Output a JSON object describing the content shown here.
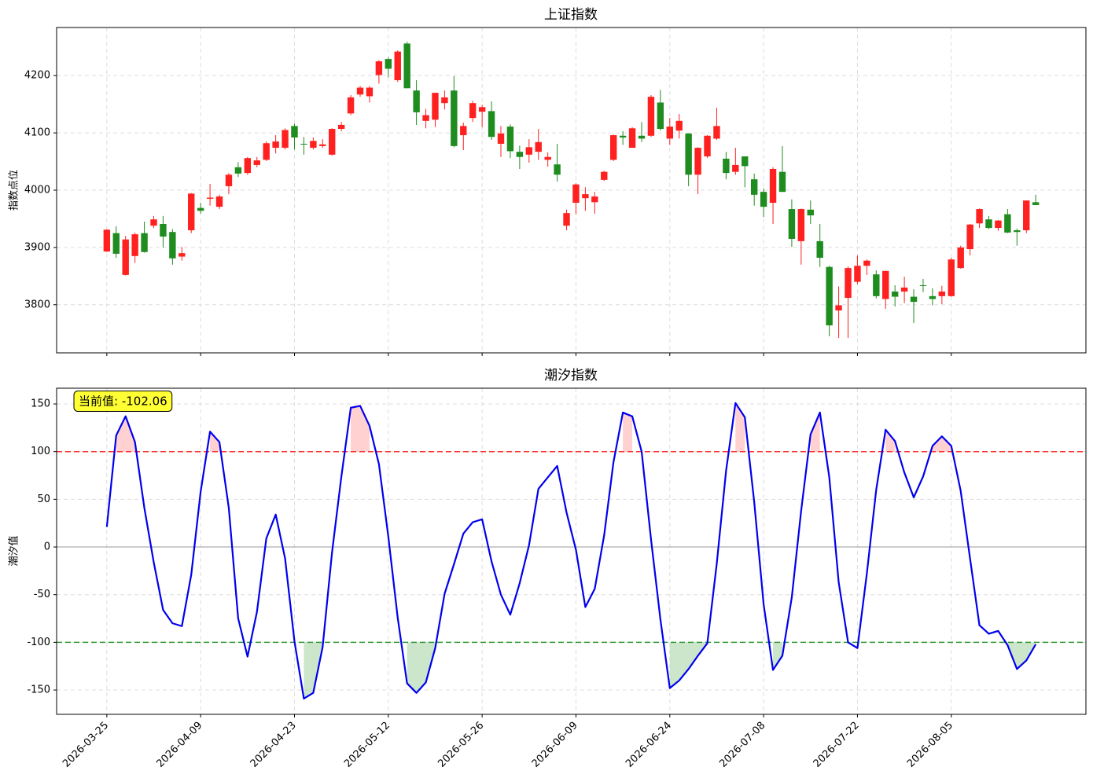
{
  "chart_data": [
    {
      "type": "candlestick",
      "title": "上证指数",
      "y_label": "指数点位",
      "open": [
        3893,
        3925,
        3852,
        3885,
        3925,
        3938,
        3941,
        3927,
        3884,
        3930,
        3969,
        3985,
        3971,
        4007,
        4040,
        4030,
        4044,
        4053,
        4074,
        4074,
        4112,
        4081,
        4074,
        4077,
        4062,
        4107,
        4134,
        4167,
        4164,
        4201,
        4229,
        4192,
        4256,
        4174,
        4121,
        4123,
        4152,
        4174,
        4096,
        4126,
        4137,
        4138,
        4081,
        4111,
        4067,
        4062,
        4067,
        4053,
        4045,
        3938,
        3978,
        3986,
        3979,
        4018,
        4053,
        4095,
        4074,
        4095,
        4095,
        4153,
        4090,
        4104,
        4099,
        4027,
        4059,
        4090,
        4055,
        4032,
        4059,
        4019,
        3997,
        3978,
        4032,
        3967,
        3911,
        3966,
        3911,
        3866,
        3790,
        3812,
        3840,
        3868,
        3853,
        3810,
        3823,
        3823,
        3814,
        3834,
        3815,
        3815,
        3815,
        3864,
        3897,
        3942,
        3949,
        3934,
        3958,
        3930,
        3930,
        3979
      ],
      "high": [
        3932,
        3937,
        3920,
        3926,
        3945,
        3955,
        3955,
        3932,
        3901,
        3995,
        3978,
        4011,
        3992,
        4030,
        4049,
        4058,
        4058,
        4085,
        4096,
        4108,
        4116,
        4093,
        4092,
        4089,
        4108,
        4119,
        4166,
        4182,
        4182,
        4227,
        4232,
        4244,
        4259,
        4192,
        4142,
        4170,
        4174,
        4199,
        4118,
        4156,
        4149,
        4155,
        4112,
        4115,
        4078,
        4089,
        4107,
        4066,
        4081,
        3966,
        4012,
        4005,
        3997,
        4034,
        4097,
        4103,
        4110,
        4119,
        4166,
        4175,
        4126,
        4133,
        4099,
        4075,
        4096,
        4144,
        4067,
        4074,
        4059,
        4029,
        4003,
        4040,
        4077,
        3984,
        3968,
        3982,
        3941,
        3868,
        3832,
        3867,
        3886,
        3879,
        3860,
        3859,
        3834,
        3849,
        3827,
        3845,
        3829,
        3833,
        3882,
        3903,
        3941,
        3968,
        3955,
        3948,
        3967,
        3933,
        3982,
        3992
      ],
      "low": [
        3892,
        3882,
        3851,
        3873,
        3891,
        3934,
        3900,
        3870,
        3877,
        3925,
        3959,
        3973,
        3967,
        3993,
        4023,
        4027,
        4040,
        4051,
        4064,
        4071,
        4071,
        4062,
        4071,
        4074,
        4060,
        4103,
        4131,
        4163,
        4153,
        4186,
        4197,
        4189,
        4178,
        4114,
        4108,
        4110,
        4141,
        4075,
        4070,
        4119,
        4110,
        4088,
        4058,
        4056,
        4037,
        4048,
        4053,
        4041,
        4015,
        3930,
        3958,
        3964,
        3959,
        4016,
        4051,
        4079,
        4074,
        4084,
        4093,
        4104,
        4079,
        4090,
        4007,
        3993,
        4056,
        4088,
        4019,
        4027,
        4005,
        3973,
        3953,
        3941,
        3997,
        3901,
        3870,
        3941,
        3866,
        3745,
        3742,
        3742,
        3836,
        3852,
        3811,
        3793,
        3797,
        3803,
        3768,
        3822,
        3799,
        3801,
        3814,
        3863,
        3886,
        3934,
        3932,
        3929,
        3925,
        3903,
        3925,
        3974
      ],
      "close": [
        3931,
        3889,
        3914,
        3923,
        3892,
        3949,
        3919,
        3881,
        3890,
        3994,
        3964,
        3987,
        3989,
        4027,
        4029,
        4056,
        4052,
        4082,
        4085,
        4105,
        4092,
        4080,
        4086,
        4080,
        4107,
        4114,
        4162,
        4179,
        4179,
        4225,
        4212,
        4242,
        4178,
        4136,
        4131,
        4170,
        4162,
        4077,
        4112,
        4152,
        4145,
        4093,
        4099,
        4068,
        4058,
        4075,
        4084,
        4058,
        4027,
        3960,
        4010,
        3993,
        3989,
        4032,
        4096,
        4092,
        4108,
        4090,
        4163,
        4107,
        4111,
        4121,
        4027,
        4074,
        4095,
        4112,
        4030,
        4044,
        4042,
        3992,
        3971,
        4037,
        3997,
        3915,
        3967,
        3956,
        3882,
        3764,
        3799,
        3864,
        3868,
        3877,
        3815,
        3859,
        3814,
        3830,
        3805,
        3833,
        3810,
        3823,
        3879,
        3900,
        3940,
        3967,
        3934,
        3947,
        3926,
        3927,
        3982,
        3974
      ],
      "up_color": "#ff2020",
      "down_color": "#1f8c1f",
      "ylim": [
        3716,
        4284
      ],
      "yticks": [
        3800,
        3900,
        4000,
        4100,
        4200
      ],
      "grid": true
    },
    {
      "type": "line",
      "title": "潮汐指数",
      "y_label": "潮汐值",
      "annotation": "当前值: -102.06",
      "categories": [
        "2026-03-25",
        null,
        null,
        null,
        null,
        null,
        null,
        null,
        null,
        null,
        "2026-04-09",
        null,
        null,
        null,
        null,
        null,
        null,
        null,
        null,
        null,
        "2026-04-23",
        null,
        null,
        null,
        null,
        null,
        null,
        null,
        null,
        null,
        "2026-05-12",
        null,
        null,
        null,
        null,
        null,
        null,
        null,
        null,
        null,
        "2026-05-26",
        null,
        null,
        null,
        null,
        null,
        null,
        null,
        null,
        null,
        "2026-06-09",
        null,
        null,
        null,
        null,
        null,
        null,
        null,
        null,
        null,
        "2026-06-24",
        null,
        null,
        null,
        null,
        null,
        null,
        null,
        null,
        null,
        "2026-07-08",
        null,
        null,
        null,
        null,
        null,
        null,
        null,
        null,
        null,
        "2026-07-22",
        null,
        null,
        null,
        null,
        null,
        null,
        null,
        null,
        null,
        "2026-08-05",
        null,
        null,
        null,
        null,
        null,
        null,
        null,
        null,
        null
      ],
      "values": [
        21,
        117,
        137,
        110,
        41,
        -16,
        -66,
        -80,
        -83,
        -29,
        58,
        121,
        110,
        41,
        -75,
        -115,
        -68,
        9,
        34,
        -12,
        -99,
        -159,
        -153,
        -105,
        -6,
        74,
        146,
        148,
        127,
        87,
        11,
        -74,
        -143,
        -153,
        -142,
        -106,
        -49,
        -18,
        14,
        26,
        29,
        -15,
        -50,
        -71,
        -38,
        2,
        61,
        73,
        85,
        36,
        -3,
        -63,
        -44,
        12,
        89,
        141,
        137,
        100,
        8,
        -76,
        -148,
        -140,
        -128,
        -114,
        -101,
        -18,
        80,
        151,
        136,
        47,
        -60,
        -129,
        -114,
        -53,
        38,
        118,
        141,
        73,
        -37,
        -100,
        -106,
        -28,
        60,
        123,
        111,
        78,
        52,
        74,
        106,
        116,
        106,
        59,
        -12,
        -82,
        -91,
        -88,
        -103,
        -128,
        -119,
        -102.06
      ],
      "color": "#0000ee",
      "hlines": [
        {
          "value": 100,
          "color": "#ff3333",
          "style": "dashed",
          "fill_above": "#ffb3b3"
        },
        {
          "value": -100,
          "color": "#339933",
          "style": "dashed",
          "fill_below": "#a8d5a8"
        },
        {
          "value": 0,
          "color": "#999999",
          "style": "solid"
        }
      ],
      "ylim": [
        -175.5,
        166.5
      ],
      "yticks": [
        -150,
        -100,
        -50,
        0,
        50,
        100,
        150
      ],
      "grid": true
    }
  ]
}
